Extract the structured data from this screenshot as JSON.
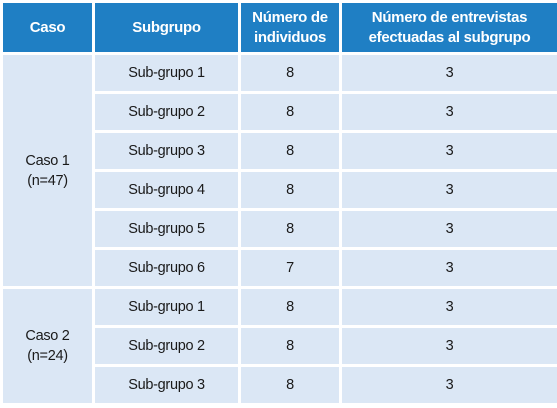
{
  "header": {
    "caso": "Caso",
    "subgrupo": "Subgrupo",
    "numero_individuos_line1": "Número de",
    "numero_individuos_line2": "individuos",
    "entrevistas_line1": "Número de entrevistas",
    "entrevistas_line2": "efectuadas al subgrupo"
  },
  "cases": [
    {
      "label_line1": "Caso 1",
      "label_line2": "(n=47)",
      "rows": [
        {
          "subgrupo": "Sub-grupo 1",
          "individuos": "8",
          "entrevistas": "3"
        },
        {
          "subgrupo": "Sub-grupo 2",
          "individuos": "8",
          "entrevistas": "3"
        },
        {
          "subgrupo": "Sub-grupo 3",
          "individuos": "8",
          "entrevistas": "3"
        },
        {
          "subgrupo": "Sub-grupo 4",
          "individuos": "8",
          "entrevistas": "3"
        },
        {
          "subgrupo": "Sub-grupo 5",
          "individuos": "8",
          "entrevistas": "3"
        },
        {
          "subgrupo": "Sub-grupo 6",
          "individuos": "7",
          "entrevistas": "3"
        }
      ]
    },
    {
      "label_line1": "Caso 2",
      "label_line2": "(n=24)",
      "rows": [
        {
          "subgrupo": "Sub-grupo 1",
          "individuos": "8",
          "entrevistas": "3"
        },
        {
          "subgrupo": "Sub-grupo 2",
          "individuos": "8",
          "entrevistas": "3"
        },
        {
          "subgrupo": "Sub-grupo 3",
          "individuos": "8",
          "entrevistas": "3"
        }
      ]
    }
  ],
  "colors": {
    "header_bg": "#1f7fc4",
    "cell_bg": "#dbe7f5"
  }
}
